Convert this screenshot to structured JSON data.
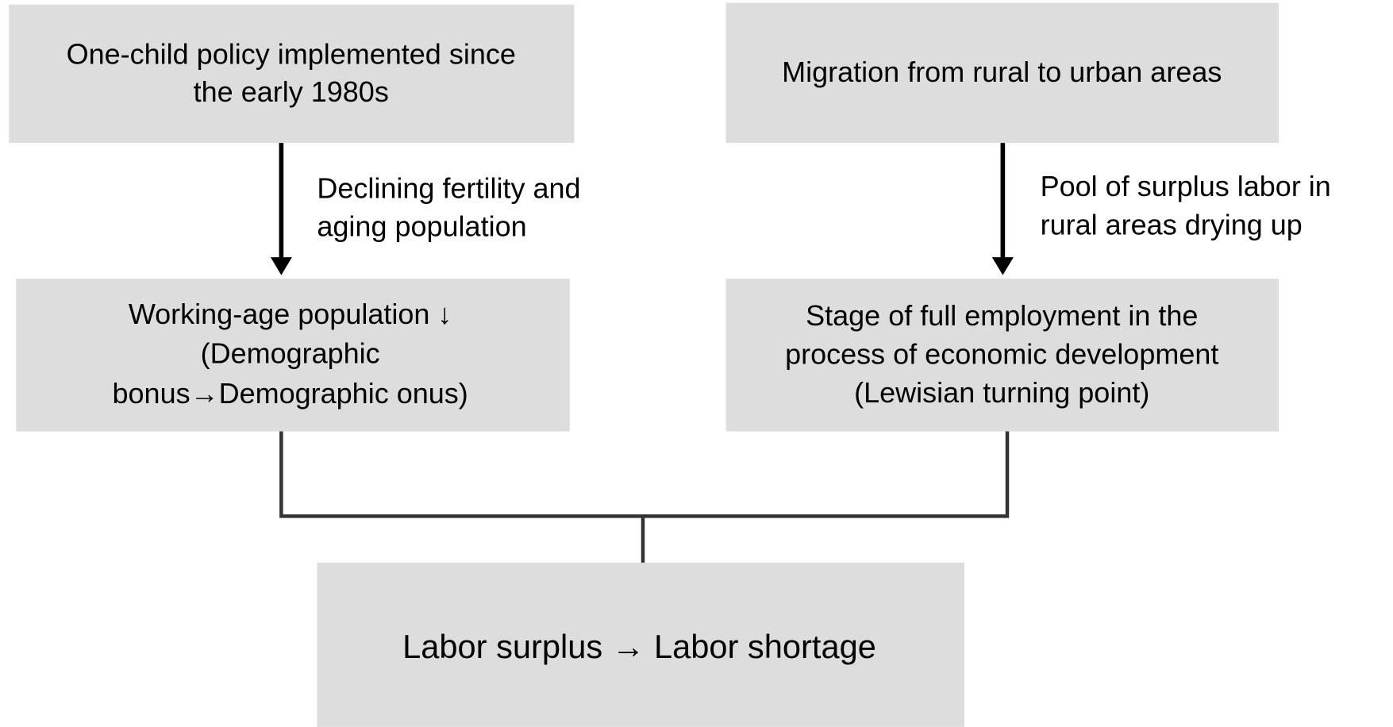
{
  "nodes": [
    {
      "lines": [
        "One-child policy implemented since",
        "the early 1980s"
      ]
    },
    {
      "lines": [
        "Migration from rural to urban areas"
      ]
    },
    {
      "lines": [
        "Working-age population ↓",
        "(Demographic",
        "bonus→Demographic onus)"
      ]
    },
    {
      "lines": [
        "Stage of full employment in the",
        "process of economic development",
        "(Lewisian turning point)"
      ]
    },
    {
      "lines": [
        "Labor surplus → Labor shortage"
      ]
    }
  ],
  "edges": [
    {
      "lines": [
        "Declining fertility and",
        "aging population"
      ]
    },
    {
      "lines": [
        "Pool of surplus labor in",
        "rural areas drying up"
      ]
    }
  ]
}
